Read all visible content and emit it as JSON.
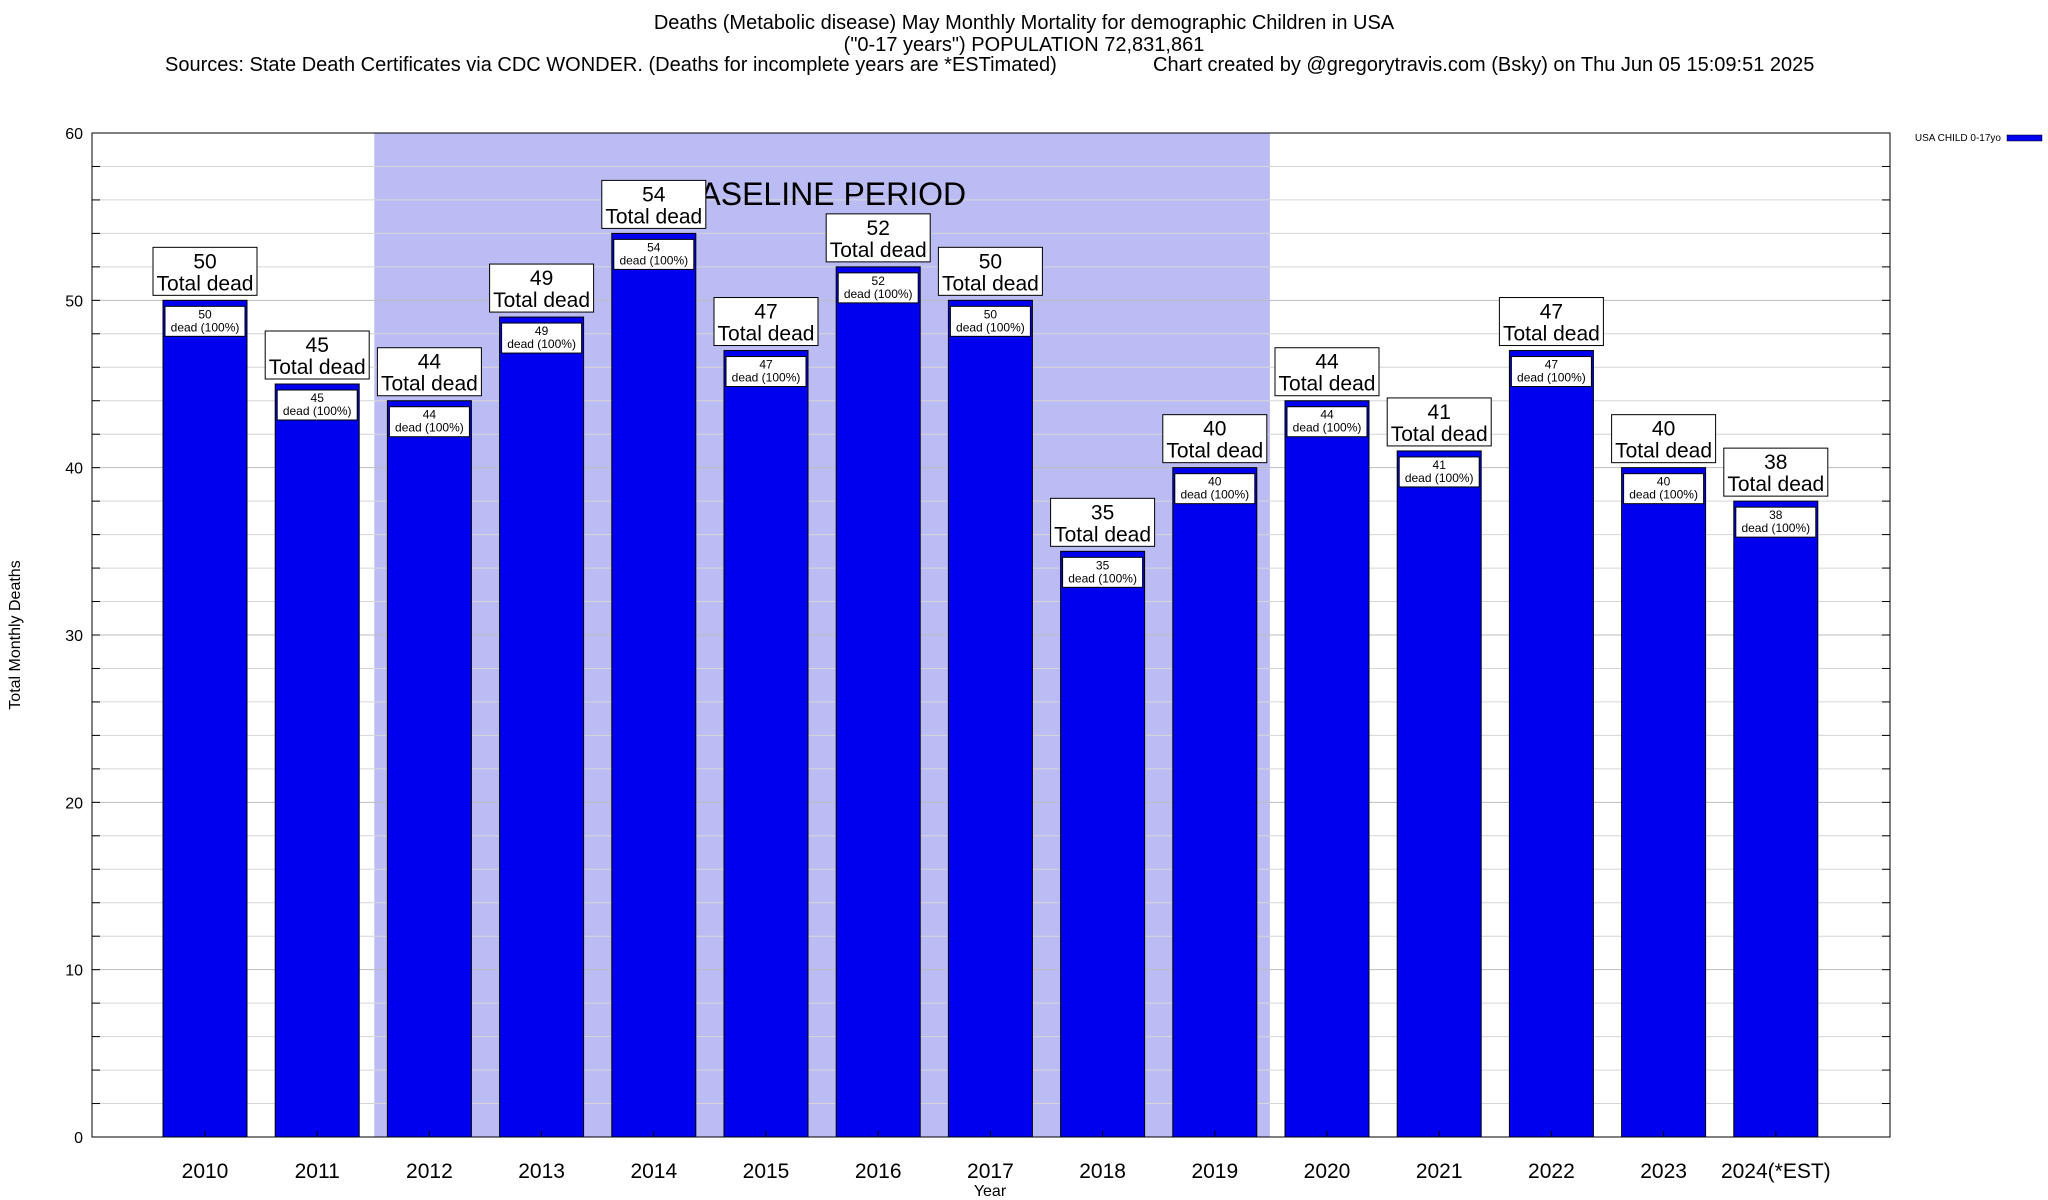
{
  "header": {
    "title": "Deaths (Metabolic disease) May Monthly Mortality for demographic Children in USA",
    "population_line": "(\"0-17 years\") POPULATION 72,831,861",
    "sources": "Sources: State Death Certificates via CDC WONDER. (Deaths for incomplete years are *ESTimated)",
    "credit": "Chart created by @gregorytravis.com (Bsky) on Thu Jun 05 15:09:51 2025"
  },
  "chart_data": {
    "type": "bar",
    "title": "Deaths (Metabolic disease) May Monthly Mortality for demographic Children in USA",
    "xlabel": "Year",
    "ylabel": "Total Monthly Deaths",
    "ylim": [
      0,
      60
    ],
    "yticks": [
      0,
      10,
      20,
      30,
      40,
      50,
      60
    ],
    "grid": true,
    "legend_position": "top-right",
    "categories": [
      "2010",
      "2011",
      "2012",
      "2013",
      "2014",
      "2015",
      "2016",
      "2017",
      "2018",
      "2019",
      "2020",
      "2021",
      "2022",
      "2023",
      "2024(*EST)"
    ],
    "series": [
      {
        "name": "USA CHILD 0-17yo",
        "color": "#0000ee",
        "values": [
          50,
          45,
          44,
          49,
          54,
          47,
          52,
          50,
          35,
          40,
          44,
          41,
          47,
          40,
          38
        ]
      }
    ],
    "total_label_suffix": "Total dead",
    "inner_label_suffix": "dead (100%)",
    "baseline": {
      "label": "BASELINE PERIOD",
      "start": "2012",
      "end": "2019",
      "color": "#bcbcf4"
    }
  }
}
